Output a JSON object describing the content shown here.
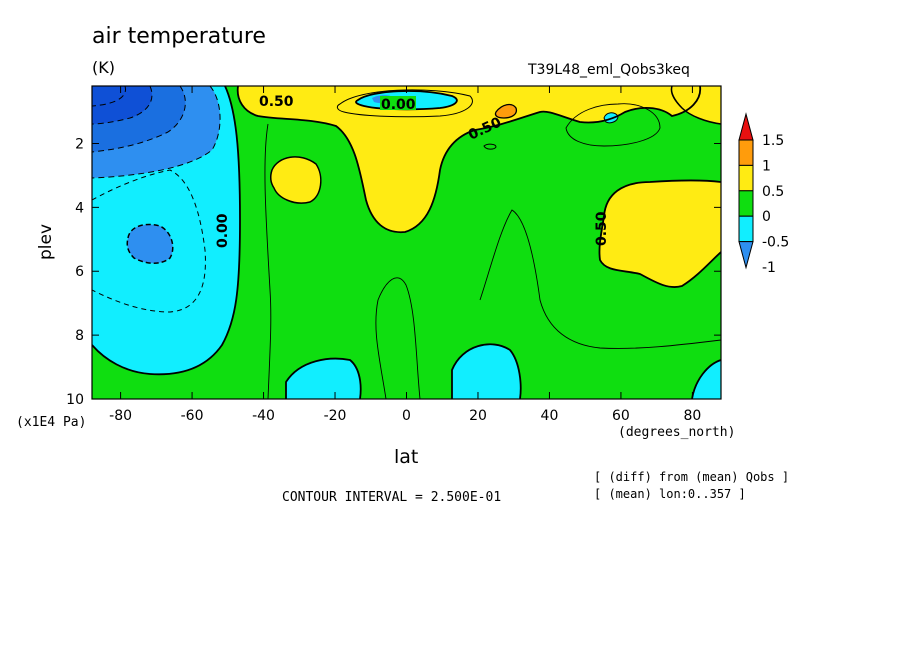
{
  "chart_data": {
    "type": "heatmap",
    "title": "air temperature",
    "units": "(K)",
    "run_id": "T39L48_eml_Qobs3keq",
    "xlabel": "lat",
    "x_units": "(degrees_north)",
    "ylabel": "plev",
    "y_units": "(x1E4 Pa)",
    "xlim": [
      -88,
      88
    ],
    "ylim": [
      0.2,
      10
    ],
    "y_inverted": true,
    "x_ticks": [
      -80,
      -60,
      -40,
      -20,
      0,
      20,
      40,
      60,
      80
    ],
    "x_tick_labels": [
      "-80",
      "-60",
      "-40",
      "-20",
      "0",
      "20",
      "40",
      "60",
      "80"
    ],
    "y_ticks": [
      2,
      4,
      6,
      8,
      10
    ],
    "y_tick_labels": [
      "2",
      "4",
      "6",
      "8",
      "10"
    ],
    "colorbar": {
      "levels": [
        -1,
        -0.5,
        0,
        0.5,
        1,
        1.5
      ],
      "level_labels": [
        "-1",
        "-0.5",
        "0",
        "0.5",
        "1",
        "1.5"
      ],
      "colors": [
        "#2e8ff0",
        "#11eeff",
        "#0fde10",
        "#ffeb13",
        "#ff9c0c",
        "#e81010"
      ]
    },
    "contour_labels": [
      "0.50",
      "0.00",
      "0.50",
      "0.00",
      "0.50"
    ],
    "contour_interval": "CONTOUR INTERVAL = 2.500E-01",
    "notes": [
      "[ (diff) from (mean) Qobs ]",
      "[ (mean) lon:0..357 ]"
    ],
    "regions": [
      {
        "id": "southern-negative-lobe",
        "value_range": [
          -0.5,
          0
        ],
        "lat_range": [
          -88,
          -48
        ],
        "plev_range": [
          1,
          9.2
        ]
      },
      {
        "id": "south-pole-strong-cooling",
        "value_range": [
          -3,
          -0.5
        ],
        "lat_range": [
          -88,
          -62
        ],
        "plev_range": [
          0.2,
          3
        ]
      },
      {
        "id": "tropical-upper-warming",
        "value_range": [
          0.5,
          1
        ],
        "lat_range": [
          -32,
          45
        ],
        "plev_range": [
          0.2,
          4.7
        ]
      },
      {
        "id": "equatorial-tropopause-cooling",
        "value_range": [
          -0.5,
          0
        ],
        "lat_range": [
          -12,
          12
        ],
        "plev_range": [
          0.2,
          0.8
        ]
      },
      {
        "id": "northern-midlat-warming",
        "value_range": [
          0.5,
          1
        ],
        "lat_range": [
          54,
          88
        ],
        "plev_range": [
          3,
          6.5
        ]
      },
      {
        "id": "surface-cooling-south",
        "value_range": [
          -0.5,
          0
        ],
        "lat_range": [
          -42,
          -15
        ],
        "plev_range": [
          8.5,
          10
        ]
      },
      {
        "id": "surface-cooling-north",
        "value_range": [
          -0.5,
          0
        ],
        "lat_range": [
          13,
          33
        ],
        "plev_range": [
          8.2,
          10
        ]
      }
    ]
  }
}
